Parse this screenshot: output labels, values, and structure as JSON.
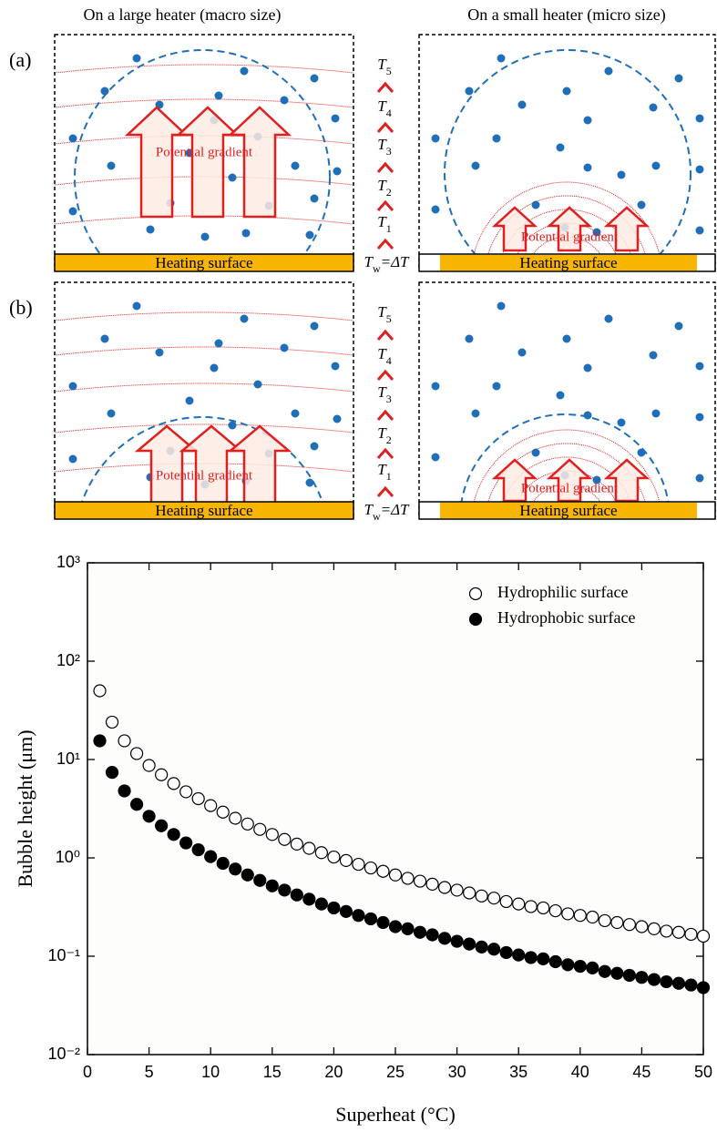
{
  "diagram": {
    "headers": [
      "On a large heater (macro size)",
      "On a small heater (micro size)"
    ],
    "panels": [
      {
        "label": "(a)",
        "macro": {
          "gradient_label": "Potential gradient",
          "surface_label": "Heating surface"
        },
        "micro": {
          "gradient_label": "Potential gradient",
          "surface_label": "Heating surface"
        },
        "temperatures": [
          {
            "symbol": "T",
            "subscript": "5"
          },
          {
            "symbol": "T",
            "subscript": "4"
          },
          {
            "symbol": "T",
            "subscript": "3"
          },
          {
            "symbol": "T",
            "subscript": "2"
          },
          {
            "symbol": "T",
            "subscript": "1"
          }
        ],
        "wall": {
          "symbol": "T",
          "subscript": "w",
          "suffix": "=ΔT"
        }
      },
      {
        "label": "(b)",
        "macro": {
          "gradient_label": "Potential gradient",
          "surface_label": "Heating surface"
        },
        "micro": {
          "gradient_label": "Potential gradient",
          "surface_label": "Heating surface"
        },
        "temperatures": [
          {
            "symbol": "T",
            "subscript": "5"
          },
          {
            "symbol": "T",
            "subscript": "4"
          },
          {
            "symbol": "T",
            "subscript": "3"
          },
          {
            "symbol": "T",
            "subscript": "2"
          },
          {
            "symbol": "T",
            "subscript": "1"
          }
        ],
        "wall": {
          "symbol": "T",
          "subscript": "w",
          "suffix": "=ΔT"
        }
      }
    ]
  },
  "chart_data": {
    "type": "scatter",
    "x_label": "Superheat (°C)",
    "y_label": "Bubble height (μm)",
    "yscale": "log",
    "xlim": [
      0,
      50
    ],
    "ylim": [
      0.01,
      1000
    ],
    "xticks": [
      0,
      5,
      10,
      15,
      20,
      25,
      30,
      35,
      40,
      45,
      50
    ],
    "yticks": [
      {
        "value": 0.01,
        "label": "10⁻²"
      },
      {
        "value": 0.1,
        "label": "10⁻¹"
      },
      {
        "value": 1,
        "label": "10⁰"
      },
      {
        "value": 10,
        "label": "10¹"
      },
      {
        "value": 100,
        "label": "10²"
      },
      {
        "value": 1000,
        "label": "10³"
      }
    ],
    "legend": "upper right",
    "x": [
      1,
      2,
      3,
      4,
      5,
      6,
      7,
      8,
      9,
      10,
      11,
      12,
      13,
      14,
      15,
      16,
      17,
      18,
      19,
      20,
      21,
      22,
      23,
      24,
      25,
      26,
      27,
      28,
      29,
      30,
      31,
      32,
      33,
      34,
      35,
      36,
      37,
      38,
      39,
      40,
      41,
      42,
      43,
      44,
      45,
      46,
      47,
      48,
      49,
      50
    ],
    "series": [
      {
        "name": "Hydrophilic surface",
        "color": "#000000",
        "marker": "open",
        "values": [
          50,
          24,
          15.5,
          11.5,
          8.7,
          7.0,
          5.7,
          4.7,
          4.0,
          3.4,
          2.92,
          2.53,
          2.21,
          1.95,
          1.73,
          1.54,
          1.38,
          1.25,
          1.13,
          1.02,
          0.94,
          0.86,
          0.79,
          0.73,
          0.67,
          0.62,
          0.58,
          0.54,
          0.5,
          0.47,
          0.44,
          0.41,
          0.39,
          0.36,
          0.34,
          0.32,
          0.31,
          0.29,
          0.27,
          0.26,
          0.25,
          0.23,
          0.22,
          0.21,
          0.2,
          0.19,
          0.18,
          0.175,
          0.167,
          0.16
        ]
      },
      {
        "name": "Hydrophobic surface",
        "color": "#000000",
        "marker": "filled",
        "values": [
          15.5,
          7.4,
          4.8,
          3.5,
          2.65,
          2.12,
          1.73,
          1.42,
          1.21,
          1.03,
          0.88,
          0.77,
          0.67,
          0.59,
          0.52,
          0.47,
          0.42,
          0.38,
          0.34,
          0.31,
          0.285,
          0.26,
          0.24,
          0.22,
          0.2,
          0.19,
          0.175,
          0.165,
          0.152,
          0.142,
          0.133,
          0.124,
          0.118,
          0.109,
          0.103,
          0.097,
          0.094,
          0.088,
          0.082,
          0.079,
          0.076,
          0.07,
          0.067,
          0.064,
          0.061,
          0.058,
          0.055,
          0.053,
          0.051,
          0.048
        ]
      }
    ]
  }
}
